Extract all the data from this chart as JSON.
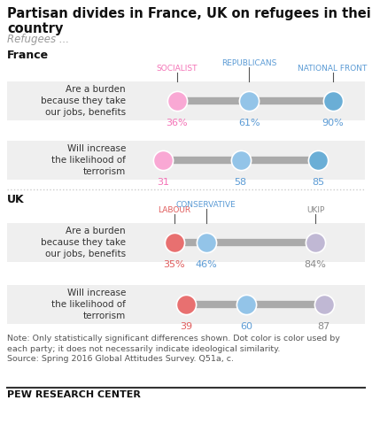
{
  "title": "Partisan divides in France, UK on refugees in their\ncountry",
  "subtitle": "Refugees ...",
  "france_label": "France",
  "uk_label": "UK",
  "france_row1_label": "Are a burden\nbecause they take\nour jobs, benefits",
  "france_row2_label": "Will increase\nthe likelihood of\nterrorism",
  "uk_row1_label": "Are a burden\nbecause they take\nour jobs, benefits",
  "uk_row2_label": "Will increase\nthe likelihood of\nterrorism",
  "france_parties": [
    "SOCIALIST",
    "REPUBLICANS",
    "NATIONAL FRONT"
  ],
  "france_party_colors": [
    "#f472b6",
    "#5b9bd5",
    "#5b9bd5"
  ],
  "france_dot_colors": [
    "#f9a8d4",
    "#93c4e8",
    "#6aaed6"
  ],
  "france_row1_values": [
    36,
    61,
    90
  ],
  "france_row2_values": [
    31,
    58,
    85
  ],
  "france_row1_labels": [
    "36%",
    "61%",
    "90%"
  ],
  "france_row2_labels": [
    "31",
    "58",
    "85"
  ],
  "france_label_colors": [
    "#f472b6",
    "#5b9bd5",
    "#5b9bd5"
  ],
  "uk_parties": [
    "LABOUR",
    "CONSERVATIVE",
    "UKIP"
  ],
  "uk_party_colors": [
    "#e05c5c",
    "#5b9bd5",
    "#888888"
  ],
  "uk_dot_colors": [
    "#e87070",
    "#93c4e8",
    "#c0b8d4"
  ],
  "uk_row1_values": [
    35,
    46,
    84
  ],
  "uk_row2_values": [
    39,
    60,
    87
  ],
  "uk_row1_labels": [
    "35%",
    "46%",
    "84%"
  ],
  "uk_row2_labels": [
    "39",
    "60",
    "87"
  ],
  "uk_label_colors": [
    "#e05c5c",
    "#5b9bd5",
    "#888888"
  ],
  "xmin": 20,
  "xmax": 100,
  "note": "Note: Only statistically significant differences shown. Dot color is color used by\neach party; it does not necessarily indicate ideological similarity.",
  "source": "Source: Spring 2016 Global Attitudes Survey. Q51a, c.",
  "footer": "PEW RESEARCH CENTER",
  "bg_color": "#ffffff",
  "bar_color": "#aaaaaa",
  "row_bg": "#efefef"
}
